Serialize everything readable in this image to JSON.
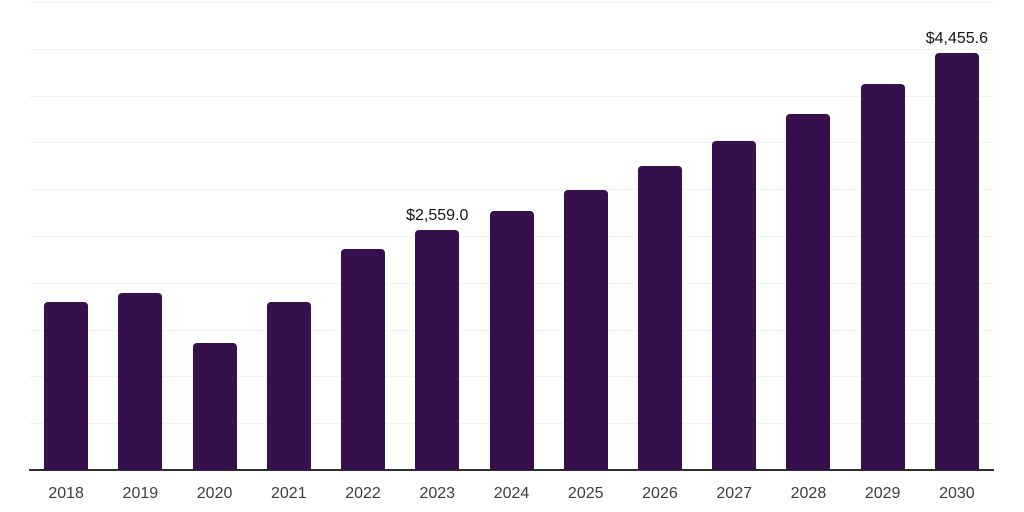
{
  "chart_data": {
    "type": "bar",
    "title": "",
    "xlabel": "",
    "ylabel": "",
    "categories": [
      "2018",
      "2019",
      "2020",
      "2021",
      "2022",
      "2023",
      "2024",
      "2025",
      "2026",
      "2027",
      "2028",
      "2029",
      "2030"
    ],
    "values": [
      1795,
      1895,
      1360,
      1800,
      2360,
      2559.0,
      2770,
      2990,
      3245,
      3515,
      3805,
      4125,
      4455.6
    ],
    "data_labels": [
      "",
      "",
      "",
      "",
      "",
      "$2,559.0",
      "",
      "",
      "",
      "",
      "",
      "",
      "$4,455.6"
    ],
    "ylim": [
      0,
      5000
    ],
    "grid_step": 500,
    "grid": "horizontal-only",
    "legend_position": "none",
    "y_tick_labels_visible": false,
    "bar_color": "#36104d"
  },
  "colors": {
    "bar": "#36104d",
    "grid_line": "#f2f2f2",
    "axis_line": "#2e2e2e",
    "tick_label": "#3d3d3d",
    "data_label": "#141414",
    "background": "#ffffff"
  }
}
